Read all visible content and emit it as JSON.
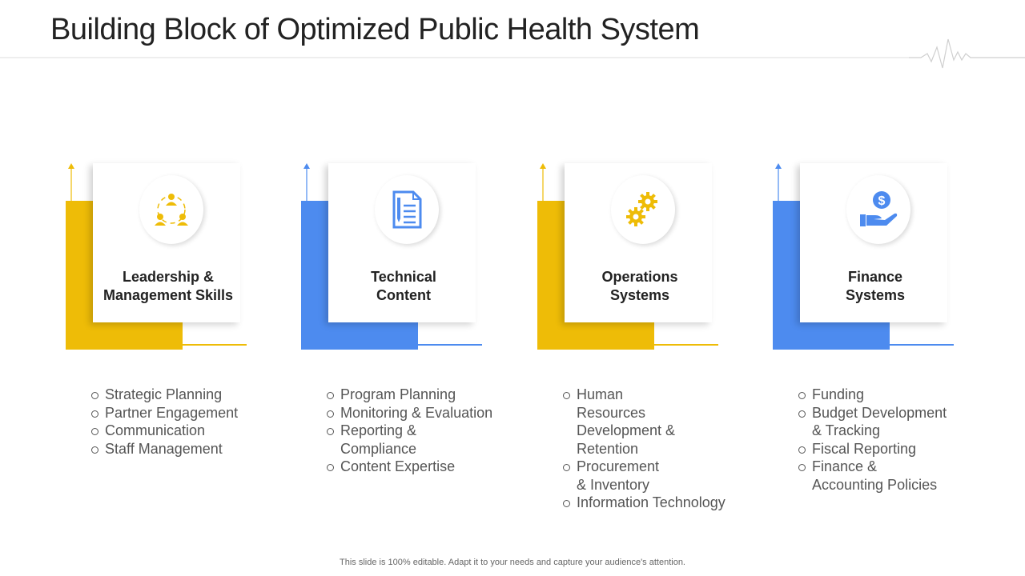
{
  "title": "Building Block of Optimized Public Health System",
  "colors": {
    "yellow": "#eebc07",
    "blue": "#4d8bef"
  },
  "blocks": [
    {
      "label_line1": "Leadership &",
      "label_line2": "Management Skills",
      "icon": "team-icon",
      "color": "#eebc07",
      "items": [
        "Strategic Planning",
        "Partner Engagement",
        "Communication",
        "Staff Management"
      ]
    },
    {
      "label_line1": "Technical",
      "label_line2": "Content",
      "icon": "document-icon",
      "color": "#4d8bef",
      "items": [
        "Program Planning",
        "Monitoring & Evaluation",
        "Reporting & Compliance",
        "Content Expertise"
      ]
    },
    {
      "label_line1": "Operations",
      "label_line2": "Systems",
      "icon": "gears-icon",
      "color": "#eebc07",
      "items": [
        "Human Resources Development & Retention",
        "Procurement & Inventory",
        "Information Technology"
      ]
    },
    {
      "label_line1": "Finance",
      "label_line2": "Systems",
      "icon": "money-hand-icon",
      "color": "#4d8bef",
      "items": [
        "Funding",
        "Budget Development & Tracking",
        "Fiscal Reporting",
        "Finance & Accounting Policies"
      ]
    }
  ],
  "footer": "This slide is 100% editable. Adapt it to your needs and capture your audience's attention."
}
